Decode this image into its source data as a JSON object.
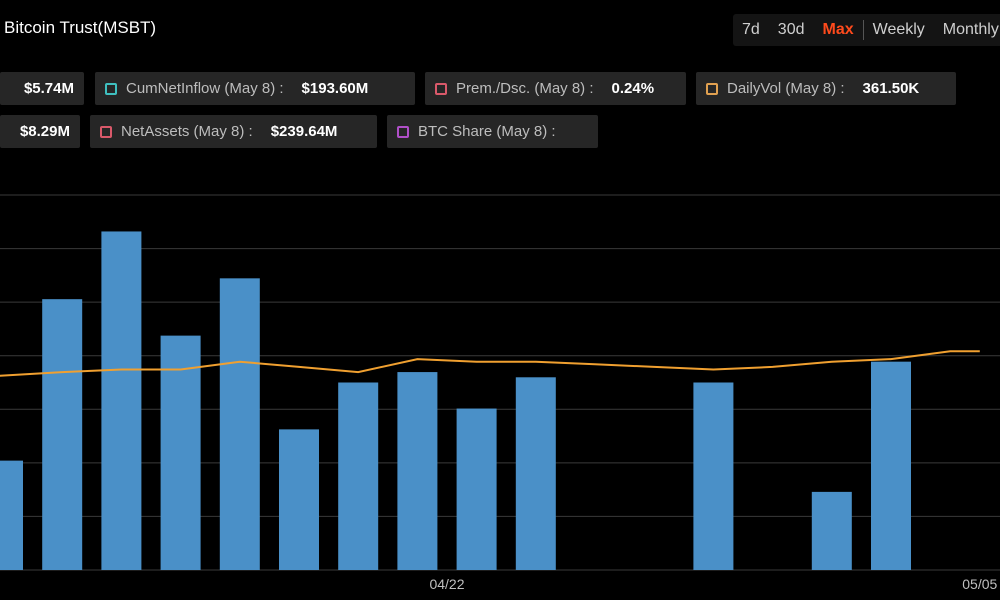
{
  "header": {
    "title": "Bitcoin Trust(MSBT)",
    "ranges": [
      "7d",
      "30d",
      "Max"
    ],
    "active_range": "Max",
    "periods": [
      "Weekly",
      "Monthly"
    ]
  },
  "metrics": {
    "row1": [
      {
        "label": "",
        "value": "$5.74M",
        "color": ""
      },
      {
        "label": "CumNetInflow (May 8) :",
        "value": "$193.60M",
        "color": "#3fbfbf"
      },
      {
        "label": "Prem./Dsc. (May 8) :",
        "value": "0.24%",
        "color": "#d9596a"
      },
      {
        "label": "DailyVol (May 8) :",
        "value": "361.50K",
        "color": "#e0a050"
      }
    ],
    "row2": [
      {
        "label": "",
        "value": "$8.29M",
        "color": ""
      },
      {
        "label": "NetAssets (May 8) :",
        "value": "$239.64M",
        "color": "#d9596a"
      },
      {
        "label": "BTC Share (May 8) :",
        "value": "",
        "color": "#b04fc8"
      }
    ]
  },
  "chart_data": {
    "type": "bar",
    "x_tick_labels": [
      "04/22",
      "05/05"
    ],
    "grid": true,
    "bar_color": "#4a90c8",
    "line_color": "#f0a030",
    "bars": [
      {
        "x": 0,
        "value": 2.1
      },
      {
        "x": 1,
        "value": 5.2
      },
      {
        "x": 2,
        "value": 6.5
      },
      {
        "x": 3,
        "value": 4.5
      },
      {
        "x": 4,
        "value": 5.6
      },
      {
        "x": 5,
        "value": 2.7
      },
      {
        "x": 6,
        "value": 3.6
      },
      {
        "x": 7,
        "value": 3.8
      },
      {
        "x": 8,
        "value": 3.1
      },
      {
        "x": 9,
        "value": 3.7
      },
      {
        "x": 12,
        "value": 3.6
      },
      {
        "x": 14,
        "value": 1.5
      },
      {
        "x": 15,
        "value": 4.0
      }
    ],
    "line": {
      "points": [
        {
          "x": -0.5,
          "value": 3.7
        },
        {
          "x": 1,
          "value": 3.8
        },
        {
          "x": 2,
          "value": 3.85
        },
        {
          "x": 3,
          "value": 3.85
        },
        {
          "x": 4,
          "value": 4.0
        },
        {
          "x": 5,
          "value": 3.9
        },
        {
          "x": 6,
          "value": 3.8
        },
        {
          "x": 7,
          "value": 4.05
        },
        {
          "x": 8,
          "value": 4.0
        },
        {
          "x": 9,
          "value": 4.0
        },
        {
          "x": 10,
          "value": 3.95
        },
        {
          "x": 11,
          "value": 3.9
        },
        {
          "x": 12,
          "value": 3.85
        },
        {
          "x": 13,
          "value": 3.9
        },
        {
          "x": 14,
          "value": 4.0
        },
        {
          "x": 15,
          "value": 4.05
        },
        {
          "x": 16,
          "value": 4.2
        },
        {
          "x": 16.5,
          "value": 4.2
        }
      ]
    },
    "x_ticks": [
      {
        "x": 7.5,
        "label": "04/22"
      },
      {
        "x": 16.5,
        "label": "05/05"
      }
    ],
    "ylim": [
      0,
      7.2
    ]
  }
}
